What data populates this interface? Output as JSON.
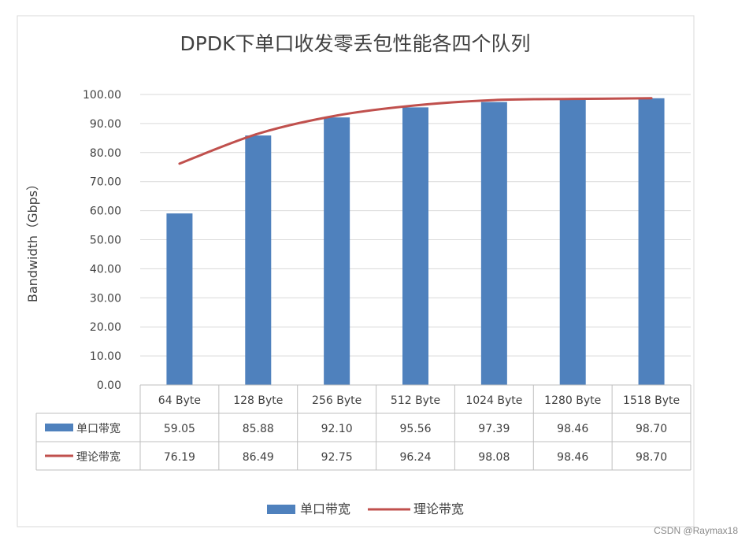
{
  "watermark": "CSDN @Raymax18",
  "chart_data": {
    "type": "bar",
    "title": "DPDK下单口收发零丢包性能各四个队列",
    "ylabel": "Bandwidth（Gbps）",
    "xlabel": "",
    "ylim": [
      0,
      100
    ],
    "y_ticks": [
      "0.00",
      "10.00",
      "20.00",
      "30.00",
      "40.00",
      "50.00",
      "60.00",
      "70.00",
      "80.00",
      "90.00",
      "100.00"
    ],
    "categories": [
      "64 Byte",
      "128 Byte",
      "256 Byte",
      "512 Byte",
      "1024 Byte",
      "1280 Byte",
      "1518 Byte"
    ],
    "series": [
      {
        "name": "单口带宽",
        "type": "bar",
        "color": "#4f81bd",
        "values": [
          59.05,
          85.88,
          92.1,
          95.56,
          97.39,
          98.46,
          98.7
        ],
        "labels": [
          "59.05",
          "85.88",
          "92.10",
          "95.56",
          "97.39",
          "98.46",
          "98.70"
        ]
      },
      {
        "name": "理论带宽",
        "type": "line",
        "color": "#c0504d",
        "values": [
          76.19,
          86.49,
          92.75,
          96.24,
          98.08,
          98.46,
          98.7
        ],
        "labels": [
          "76.19",
          "86.49",
          "92.75",
          "96.24",
          "98.08",
          "98.46",
          "98.70"
        ]
      }
    ],
    "grid": true,
    "legend": "bottom",
    "data_table": true
  }
}
